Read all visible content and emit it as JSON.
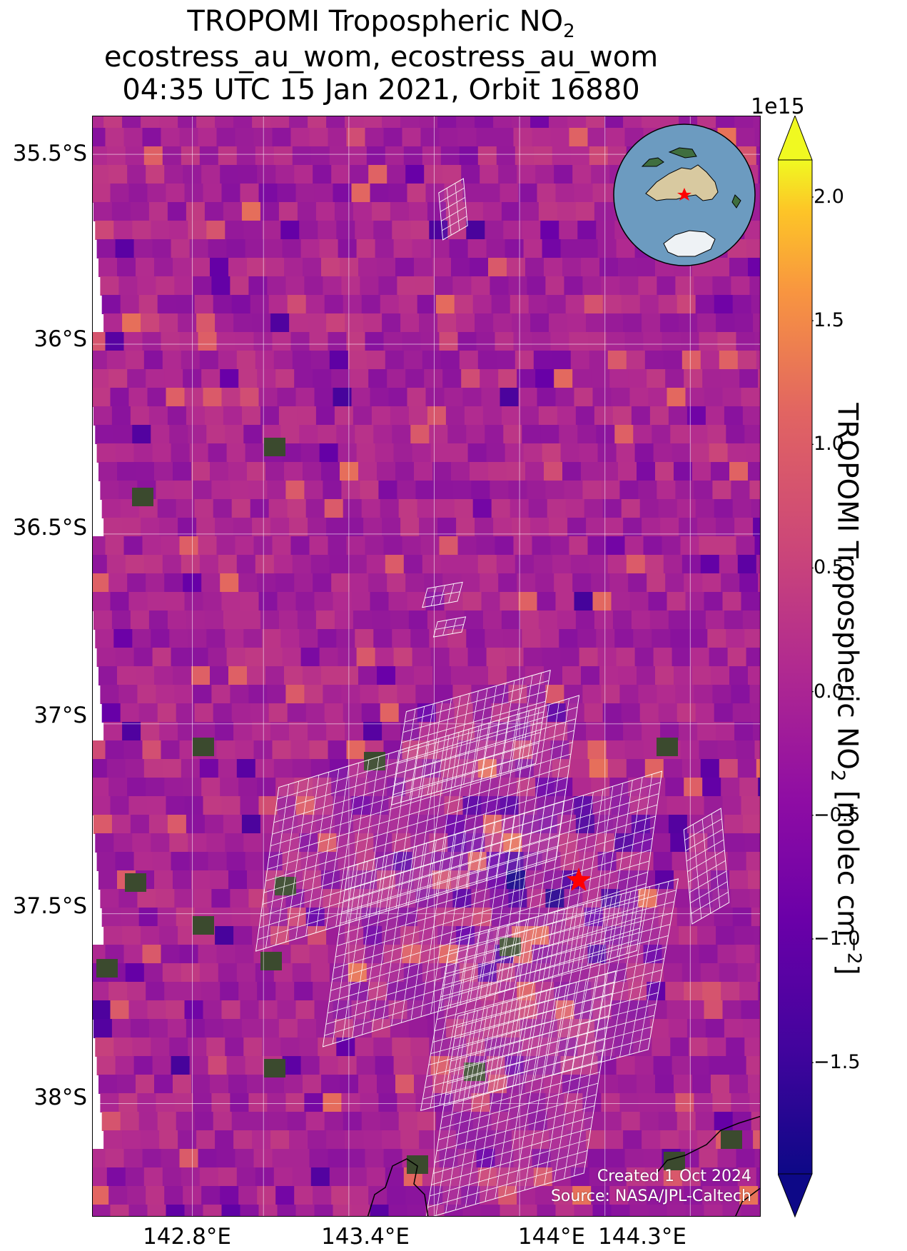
{
  "title": {
    "line1": "TROPOMI Tropospheric NO",
    "line1_sub": "2",
    "line2": "ecostress_au_wom, ecostress_au_wom",
    "line3": "04:35 UTC 15 Jan 2021, Orbit 16880"
  },
  "map": {
    "lat_labels": [
      "35.5°S",
      "36°S",
      "36.5°S",
      "37°S",
      "37.5°S",
      "38°S"
    ],
    "lon_labels": [
      "142.8°E",
      "143.4°E",
      "144°E",
      "144.3°E"
    ],
    "lat_values": [
      -35.5,
      -36.0,
      -36.5,
      -37.0,
      -37.5,
      -38.0
    ],
    "lon_values": [
      142.8,
      143.4,
      144.0,
      144.3
    ],
    "lat_range": [
      -38.3,
      -35.4
    ],
    "lon_range": [
      142.2,
      144.55
    ],
    "site_marker": {
      "shape": "star",
      "color": "#ff0000"
    },
    "overlay_color": "#ffffff",
    "credit_line1": "Created 1 Oct 2024",
    "credit_line2": "Source: NASA/JPL-Caltech"
  },
  "colorbar": {
    "exponent": "1e15",
    "ticks": [
      "2.0",
      "1.5",
      "1.0",
      "0.5",
      "0.0",
      "−0.5",
      "−1.0",
      "−1.5"
    ],
    "tick_values": [
      2.0,
      1.5,
      1.0,
      0.5,
      0.0,
      -0.5,
      -1.0,
      -1.5
    ],
    "range": [
      -1.95,
      2.15
    ],
    "colormap": "plasma",
    "label": "TROPOMI Tropospheric NO",
    "label_sub": "2",
    "label_unit": " [molec cm",
    "label_exp": "−2",
    "label_close": "]"
  }
}
